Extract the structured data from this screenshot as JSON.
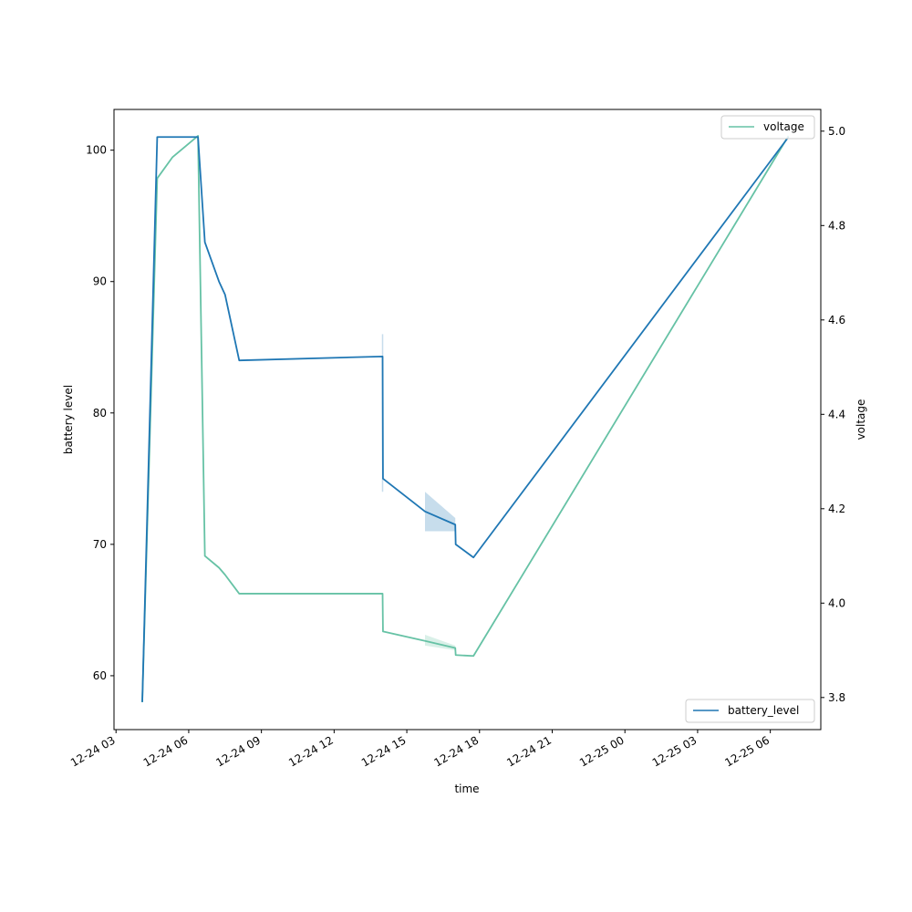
{
  "chart_data": {
    "type": "line",
    "xlabel": "time",
    "ylabel_left": "battery level",
    "ylabel_right": "voltage",
    "x_ticks": [
      "2023-12-24T03:00",
      "2023-12-24T06:00",
      "2023-12-24T09:00",
      "2023-12-24T12:00",
      "2023-12-24T15:00",
      "2023-12-24T18:00",
      "2023-12-24T21:00",
      "2023-12-25T00:00",
      "2023-12-25T03:00",
      "2023-12-25T06:00"
    ],
    "x_tick_labels": [
      "12-24 03",
      "12-24 06",
      "12-24 09",
      "12-24 12",
      "12-24 15",
      "12-24 18",
      "12-24 21",
      "12-25 00",
      "12-25 03",
      "12-25 06"
    ],
    "xlim": [
      "2023-12-24T02:55",
      "2023-12-25T08:05"
    ],
    "y_left_ticks": [
      60,
      70,
      80,
      90,
      100
    ],
    "y_left_lim": [
      55.9,
      103.1
    ],
    "y_right_ticks": [
      "3.8",
      "4.0",
      "4.2",
      "4.4",
      "4.6",
      "4.8",
      "5.0"
    ],
    "y_right_lim": [
      3.732,
      5.046
    ],
    "grid": false,
    "series": [
      {
        "name": "battery_level",
        "axis": "left",
        "color": "#1f77b4",
        "legend_position": "lower-right",
        "points": [
          [
            "2023-12-24T04:05",
            58
          ],
          [
            "2023-12-24T04:42",
            101
          ],
          [
            "2023-12-24T06:23",
            101
          ],
          [
            "2023-12-24T06:40",
            93
          ],
          [
            "2023-12-24T07:15",
            90
          ],
          [
            "2023-12-24T07:30",
            89
          ],
          [
            "2023-12-24T08:05",
            84
          ],
          [
            "2023-12-24T14:00",
            84.3
          ],
          [
            "2023-12-24T14:01",
            75
          ],
          [
            "2023-12-24T15:45",
            72.5
          ],
          [
            "2023-12-24T17:00",
            71.5
          ],
          [
            "2023-12-24T17:01",
            70
          ],
          [
            "2023-12-24T17:45",
            69
          ],
          [
            "2023-12-25T06:45",
            101
          ]
        ],
        "confidence_band": [
          [
            "2023-12-24T15:45",
            71,
            74
          ],
          [
            "2023-12-24T17:00",
            71,
            72
          ]
        ],
        "error_segment": [
          "2023-12-24T14:00",
          74,
          86
        ]
      },
      {
        "name": "voltage",
        "axis": "right",
        "color": "#66c2a5",
        "legend_position": "upper-right",
        "points": [
          [
            "2023-12-24T04:05",
            3.79
          ],
          [
            "2023-12-24T04:42",
            4.9
          ],
          [
            "2023-12-24T05:20",
            4.945
          ],
          [
            "2023-12-24T06:23",
            4.99
          ],
          [
            "2023-12-24T06:40",
            4.1
          ],
          [
            "2023-12-24T07:15",
            4.075
          ],
          [
            "2023-12-24T07:30",
            4.06
          ],
          [
            "2023-12-24T08:05",
            4.02
          ],
          [
            "2023-12-24T14:00",
            4.02
          ],
          [
            "2023-12-24T14:01",
            3.94
          ],
          [
            "2023-12-24T15:45",
            3.92
          ],
          [
            "2023-12-24T17:00",
            3.905
          ],
          [
            "2023-12-24T17:01",
            3.89
          ],
          [
            "2023-12-24T17:45",
            3.888
          ],
          [
            "2023-12-25T06:45",
            4.99
          ]
        ],
        "confidence_band": [
          [
            "2023-12-24T15:45",
            3.91,
            3.933
          ],
          [
            "2023-12-24T17:00",
            3.9,
            3.91
          ]
        ]
      }
    ]
  }
}
